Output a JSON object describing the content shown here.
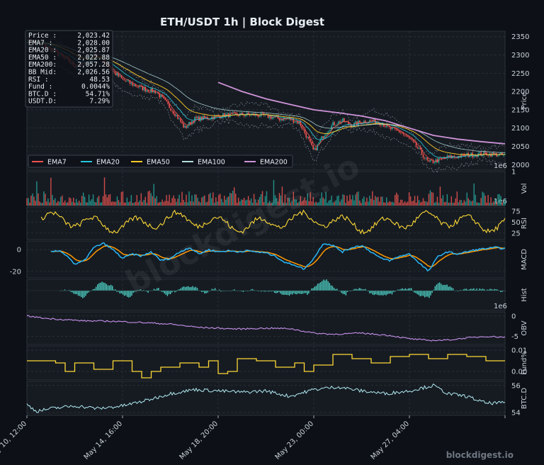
{
  "title": "ETH/USDT  1h  |  Block Digest",
  "watermark": "blockdigest.io",
  "brand": "blockdigest.io",
  "colors": {
    "background": "#0d1117",
    "panel": "#161b22",
    "grid": "#30363d",
    "up": "#26a69a",
    "down": "#ef5350",
    "ema7": "#ef5350",
    "ema20": "#26c6da",
    "ema50": "#ffca28",
    "ema100": "#b2dfdb",
    "ema200": "#ce93d8",
    "rsi": "#fdd835",
    "macd": "#29b6f6",
    "signal": "#ff9800",
    "hist": "#4dd0c4",
    "obv": "#c792ea",
    "fund": "#fdd835",
    "btcd": "#b2ebf2"
  },
  "info_box": [
    {
      "label": "Price  :",
      "value": "2,023.42"
    },
    {
      "label": "EMA7   :",
      "value": "2,028.00"
    },
    {
      "label": "EMA20  :",
      "value": "2,025.87"
    },
    {
      "label": "EMA50  :",
      "value": "2,022.88"
    },
    {
      "label": "EMA200:",
      "value": "2,057.28"
    },
    {
      "label": "BB Mid:",
      "value": "2,026.56"
    },
    {
      "label": "RSI    :",
      "value": "48.53"
    },
    {
      "label": "Fund   :",
      "value": "0.0044%"
    },
    {
      "label": "BTC.D  :",
      "value": "54.71%"
    },
    {
      "label": "USDT.D:",
      "value": "7.29%"
    }
  ],
  "legend": [
    "EMA7",
    "EMA20",
    "EMA50",
    "EMA100",
    "EMA200"
  ],
  "x_ticks": [
    {
      "label": "May 10, 12:00",
      "t": 0
    },
    {
      "label": "May 14, 16:00",
      "t": 0.2
    },
    {
      "label": "May 18, 20:00",
      "t": 0.4
    },
    {
      "label": "May 23, 00:00",
      "t": 0.6
    },
    {
      "label": "May 27, 04:00",
      "t": 0.8
    },
    {
      "label": "",
      "t": 1.0
    }
  ],
  "chart_data": [
    {
      "type": "line",
      "panel": "price",
      "ylabel": "Price",
      "ylim": [
        1985,
        2365
      ],
      "yticks": [
        2000,
        2050,
        2100,
        2150,
        2200,
        2250,
        2300,
        2350
      ],
      "scale_note": "1e6",
      "series": [
        {
          "name": "EMA7"
        },
        {
          "name": "EMA20"
        },
        {
          "name": "EMA50"
        },
        {
          "name": "EMA100"
        },
        {
          "name": "EMA200"
        }
      ],
      "price_path": [
        [
          0.0,
          2340
        ],
        [
          0.03,
          2330
        ],
        [
          0.05,
          2315
        ],
        [
          0.08,
          2290
        ],
        [
          0.1,
          2270
        ],
        [
          0.12,
          2275
        ],
        [
          0.14,
          2305
        ],
        [
          0.16,
          2285
        ],
        [
          0.18,
          2255
        ],
        [
          0.2,
          2232
        ],
        [
          0.22,
          2220
        ],
        [
          0.25,
          2205
        ],
        [
          0.27,
          2200
        ],
        [
          0.29,
          2170
        ],
        [
          0.31,
          2140
        ],
        [
          0.33,
          2100
        ],
        [
          0.35,
          2125
        ],
        [
          0.38,
          2128
        ],
        [
          0.41,
          2135
        ],
        [
          0.44,
          2137
        ],
        [
          0.47,
          2137
        ],
        [
          0.5,
          2133
        ],
        [
          0.53,
          2125
        ],
        [
          0.55,
          2125
        ],
        [
          0.57,
          2115
        ],
        [
          0.59,
          2065
        ],
        [
          0.6,
          2035
        ],
        [
          0.62,
          2080
        ],
        [
          0.64,
          2110
        ],
        [
          0.66,
          2120
        ],
        [
          0.68,
          2108
        ],
        [
          0.7,
          2118
        ],
        [
          0.72,
          2120
        ],
        [
          0.74,
          2115
        ],
        [
          0.76,
          2098
        ],
        [
          0.78,
          2090
        ],
        [
          0.8,
          2070
        ],
        [
          0.82,
          2040
        ],
        [
          0.84,
          2005
        ],
        [
          0.86,
          2012
        ],
        [
          0.88,
          2020
        ],
        [
          0.9,
          2022
        ],
        [
          0.92,
          2026
        ],
        [
          0.94,
          2028
        ],
        [
          0.96,
          2030
        ],
        [
          0.98,
          2028
        ],
        [
          1.0,
          2025
        ]
      ],
      "ema200_path": [
        [
          0.4,
          2225
        ],
        [
          0.45,
          2200
        ],
        [
          0.5,
          2180
        ],
        [
          0.55,
          2165
        ],
        [
          0.6,
          2150
        ],
        [
          0.65,
          2142
        ],
        [
          0.7,
          2133
        ],
        [
          0.75,
          2120
        ],
        [
          0.8,
          2100
        ],
        [
          0.85,
          2080
        ],
        [
          0.9,
          2070
        ],
        [
          0.95,
          2063
        ],
        [
          1.0,
          2057
        ]
      ]
    },
    {
      "type": "bar",
      "panel": "volume",
      "ylabel": "Vol",
      "ylim": [
        0,
        1
      ],
      "yticks": [
        1
      ],
      "scale_note": "1e6"
    },
    {
      "type": "line",
      "panel": "rsi",
      "ylabel": "RSI",
      "ylim": [
        10,
        85
      ],
      "yticks": [
        25,
        50,
        75
      ]
    },
    {
      "type": "line",
      "panel": "macd",
      "ylabel": "MACD",
      "ylim": [
        -26,
        8
      ],
      "yticks": [
        -20,
        0
      ],
      "macd_path": [
        [
          0.05,
          -2
        ],
        [
          0.07,
          -1
        ],
        [
          0.09,
          -8
        ],
        [
          0.1,
          -14
        ],
        [
          0.12,
          -10
        ],
        [
          0.14,
          2
        ],
        [
          0.16,
          6
        ],
        [
          0.18,
          0
        ],
        [
          0.2,
          -8
        ],
        [
          0.22,
          -4
        ],
        [
          0.24,
          -6
        ],
        [
          0.26,
          -2
        ],
        [
          0.28,
          -10
        ],
        [
          0.3,
          -8
        ],
        [
          0.32,
          -2
        ],
        [
          0.34,
          2
        ],
        [
          0.36,
          -4
        ],
        [
          0.38,
          0
        ],
        [
          0.4,
          -2
        ],
        [
          0.42,
          -1
        ],
        [
          0.44,
          -2
        ],
        [
          0.46,
          -1
        ],
        [
          0.48,
          -2
        ],
        [
          0.5,
          -3
        ],
        [
          0.52,
          -6
        ],
        [
          0.54,
          -12
        ],
        [
          0.56,
          -14
        ],
        [
          0.58,
          -18
        ],
        [
          0.6,
          -8
        ],
        [
          0.62,
          6
        ],
        [
          0.64,
          4
        ],
        [
          0.66,
          -2
        ],
        [
          0.68,
          2
        ],
        [
          0.7,
          4
        ],
        [
          0.72,
          -2
        ],
        [
          0.74,
          -8
        ],
        [
          0.76,
          -10
        ],
        [
          0.78,
          -6
        ],
        [
          0.8,
          -4
        ],
        [
          0.82,
          -12
        ],
        [
          0.84,
          -20
        ],
        [
          0.86,
          -6
        ],
        [
          0.88,
          -2
        ],
        [
          0.9,
          -4
        ],
        [
          0.92,
          -2
        ],
        [
          0.94,
          0
        ],
        [
          0.96,
          1
        ],
        [
          0.98,
          2
        ],
        [
          1.0,
          1
        ]
      ]
    },
    {
      "type": "bar",
      "panel": "hist",
      "ylabel": "Hist",
      "ylim": [
        -1,
        1
      ],
      "scale_note": "1e6"
    },
    {
      "type": "line",
      "panel": "obv",
      "ylabel": "OBV",
      "ylim": [
        -7,
        1
      ],
      "yticks": [
        -5,
        0
      ],
      "obv_path": [
        [
          0.0,
          0
        ],
        [
          0.04,
          -0.6
        ],
        [
          0.08,
          -0.9
        ],
        [
          0.12,
          -1.2
        ],
        [
          0.18,
          -1.3
        ],
        [
          0.24,
          -1.6
        ],
        [
          0.3,
          -2.0
        ],
        [
          0.36,
          -2.8
        ],
        [
          0.4,
          -3.0
        ],
        [
          0.44,
          -3.2
        ],
        [
          0.5,
          -3.0
        ],
        [
          0.55,
          -3.1
        ],
        [
          0.6,
          -4.2
        ],
        [
          0.64,
          -4.5
        ],
        [
          0.7,
          -4.2
        ],
        [
          0.76,
          -4.8
        ],
        [
          0.8,
          -5.6
        ],
        [
          0.84,
          -6.0
        ],
        [
          0.88,
          -5.9
        ],
        [
          0.92,
          -5.4
        ],
        [
          0.96,
          -5.0
        ],
        [
          1.0,
          -5.2
        ]
      ]
    },
    {
      "type": "line",
      "panel": "fund",
      "ylabel": "Fund%",
      "ylim": [
        -0.004,
        0.012
      ],
      "yticks": [
        0.0,
        0.01
      ],
      "ytick_labels": [
        "0.00",
        "0.01"
      ],
      "fund_path": [
        [
          0.0,
          0.005
        ],
        [
          0.06,
          0.004
        ],
        [
          0.08,
          0.0
        ],
        [
          0.1,
          0.004
        ],
        [
          0.14,
          0.001
        ],
        [
          0.18,
          0.005
        ],
        [
          0.22,
          0.0
        ],
        [
          0.24,
          -0.003
        ],
        [
          0.26,
          0.0
        ],
        [
          0.28,
          0.002
        ],
        [
          0.32,
          0.004
        ],
        [
          0.36,
          0.002
        ],
        [
          0.38,
          0.005
        ],
        [
          0.4,
          -0.001
        ],
        [
          0.42,
          0.0
        ],
        [
          0.44,
          0.006
        ],
        [
          0.48,
          0.005
        ],
        [
          0.52,
          0.002
        ],
        [
          0.56,
          0.004
        ],
        [
          0.58,
          0.0
        ],
        [
          0.6,
          0.003
        ],
        [
          0.64,
          0.008
        ],
        [
          0.68,
          0.006
        ],
        [
          0.72,
          0.004
        ],
        [
          0.76,
          0.007
        ],
        [
          0.8,
          0.008
        ],
        [
          0.84,
          0.006
        ],
        [
          0.88,
          0.008
        ],
        [
          0.92,
          0.007
        ],
        [
          0.96,
          0.005
        ],
        [
          1.0,
          0.005
        ]
      ]
    },
    {
      "type": "line",
      "panel": "btcd",
      "ylabel": "BTC.D",
      "ylim": [
        53.8,
        56.3
      ],
      "yticks": [
        54,
        56
      ],
      "btcd_path": [
        [
          0.0,
          54.6
        ],
        [
          0.02,
          54.1
        ],
        [
          0.05,
          54.3
        ],
        [
          0.1,
          54.5
        ],
        [
          0.15,
          54.3
        ],
        [
          0.2,
          54.5
        ],
        [
          0.25,
          54.9
        ],
        [
          0.3,
          55.4
        ],
        [
          0.35,
          55.7
        ],
        [
          0.4,
          55.6
        ],
        [
          0.45,
          55.5
        ],
        [
          0.5,
          55.6
        ],
        [
          0.55,
          55.2
        ],
        [
          0.6,
          55.7
        ],
        [
          0.65,
          55.9
        ],
        [
          0.7,
          55.6
        ],
        [
          0.75,
          55.4
        ],
        [
          0.8,
          55.6
        ],
        [
          0.85,
          56.0
        ],
        [
          0.88,
          55.4
        ],
        [
          0.92,
          55.2
        ],
        [
          0.96,
          54.7
        ],
        [
          1.0,
          54.71
        ]
      ]
    }
  ]
}
